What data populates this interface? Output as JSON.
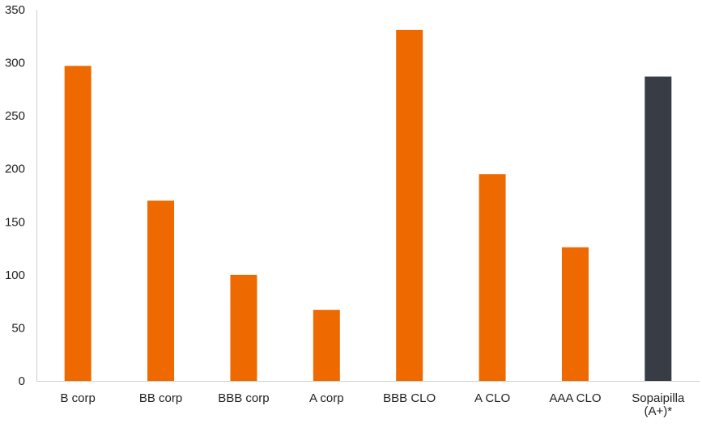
{
  "chart_data": {
    "type": "bar",
    "title": "",
    "xlabel": "",
    "ylabel": "",
    "categories": [
      [
        "B corp"
      ],
      [
        "BB corp"
      ],
      [
        "BBB corp"
      ],
      [
        "A corp"
      ],
      [
        "BBB CLO"
      ],
      [
        "A CLO"
      ],
      [
        "AAA CLO"
      ],
      [
        "Sopaipilla",
        "(A+)*"
      ]
    ],
    "values": [
      297,
      170,
      100,
      67,
      331,
      195,
      126,
      287
    ],
    "bar_colors": [
      "#EE6A00",
      "#EE6A00",
      "#EE6A00",
      "#EE6A00",
      "#EE6A00",
      "#EE6A00",
      "#EE6A00",
      "#373C45"
    ],
    "yticks": [
      "0",
      "50",
      "100",
      "150",
      "200",
      "250",
      "300",
      "350"
    ],
    "ylim": [
      0,
      350
    ],
    "grid": false,
    "legend": "none"
  }
}
